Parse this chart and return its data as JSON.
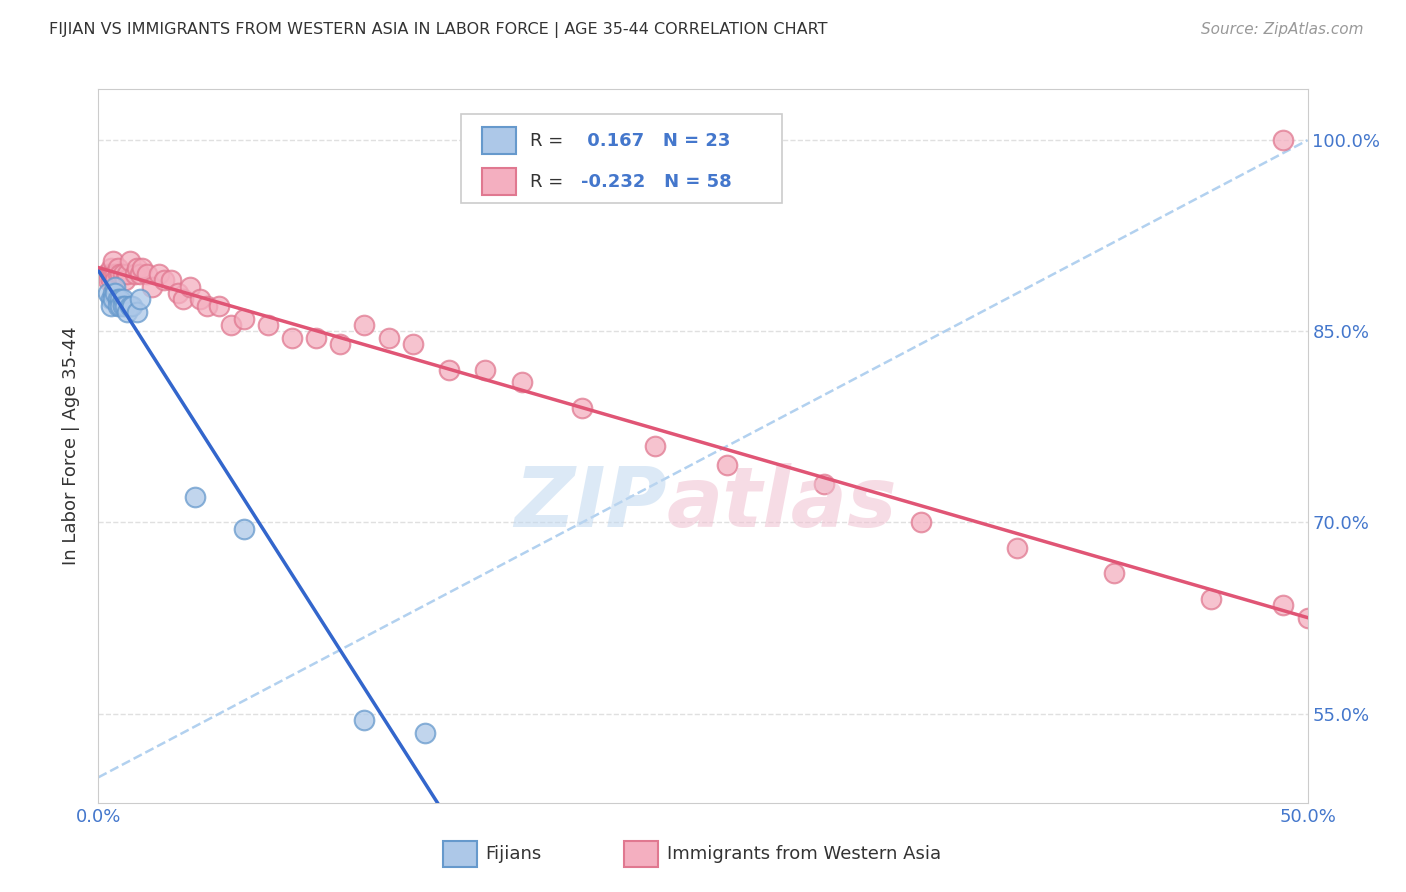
{
  "title": "FIJIAN VS IMMIGRANTS FROM WESTERN ASIA IN LABOR FORCE | AGE 35-44 CORRELATION CHART",
  "source": "Source: ZipAtlas.com",
  "ylabel": "In Labor Force | Age 35-44",
  "xlim": [
    0.0,
    0.5
  ],
  "ylim": [
    0.48,
    1.04
  ],
  "ytick_positions": [
    0.55,
    0.7,
    0.85,
    1.0
  ],
  "fijian_color": "#adc8e8",
  "fijian_edge": "#6699cc",
  "western_asia_color": "#f4afc0",
  "western_asia_edge": "#e07890",
  "trend_blue": "#3366cc",
  "trend_pink": "#e05575",
  "ref_line_color": "#aaccee",
  "legend_R_blue": "0.167",
  "legend_N_blue": "23",
  "legend_R_pink": "-0.232",
  "legend_N_pink": "58",
  "legend_label_blue": "Fijians",
  "legend_label_pink": "Immigrants from Western Asia",
  "background_color": "#ffffff",
  "grid_color": "#e0e0e0",
  "fijian_x": [
    0.004,
    0.005,
    0.005,
    0.006,
    0.006,
    0.007,
    0.007,
    0.008,
    0.008,
    0.009,
    0.009,
    0.01,
    0.01,
    0.011,
    0.012,
    0.013,
    0.014,
    0.016,
    0.017,
    0.04,
    0.06,
    0.11,
    0.135
  ],
  "fijian_y": [
    0.88,
    0.875,
    0.87,
    0.88,
    0.875,
    0.885,
    0.88,
    0.875,
    0.87,
    0.875,
    0.87,
    0.875,
    0.87,
    0.87,
    0.865,
    0.87,
    0.87,
    0.865,
    0.875,
    0.72,
    0.695,
    0.545,
    0.535
  ],
  "western_asia_x": [
    0.003,
    0.004,
    0.004,
    0.005,
    0.005,
    0.005,
    0.006,
    0.006,
    0.007,
    0.007,
    0.008,
    0.008,
    0.009,
    0.01,
    0.011,
    0.012,
    0.013,
    0.015,
    0.016,
    0.017,
    0.018,
    0.02,
    0.022,
    0.025,
    0.027,
    0.03,
    0.033,
    0.035,
    0.038,
    0.042,
    0.045,
    0.05,
    0.055,
    0.06,
    0.07,
    0.08,
    0.09,
    0.1,
    0.11,
    0.12,
    0.13,
    0.145,
    0.16,
    0.175,
    0.2,
    0.23,
    0.26,
    0.3,
    0.34,
    0.38,
    0.42,
    0.46,
    0.49,
    0.5,
    0.505,
    0.51,
    0.515,
    0.49
  ],
  "western_asia_y": [
    0.895,
    0.895,
    0.89,
    0.9,
    0.895,
    0.89,
    0.895,
    0.905,
    0.895,
    0.89,
    0.895,
    0.9,
    0.895,
    0.895,
    0.89,
    0.895,
    0.905,
    0.895,
    0.9,
    0.895,
    0.9,
    0.895,
    0.885,
    0.895,
    0.89,
    0.89,
    0.88,
    0.875,
    0.885,
    0.875,
    0.87,
    0.87,
    0.855,
    0.86,
    0.855,
    0.845,
    0.845,
    0.84,
    0.855,
    0.845,
    0.84,
    0.82,
    0.82,
    0.81,
    0.79,
    0.76,
    0.745,
    0.73,
    0.7,
    0.68,
    0.66,
    0.64,
    0.635,
    0.625,
    0.63,
    0.63,
    0.635,
    1.0
  ]
}
